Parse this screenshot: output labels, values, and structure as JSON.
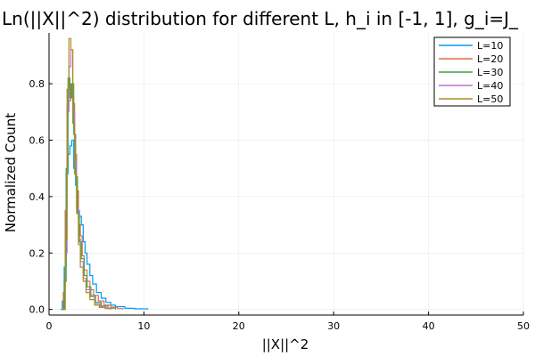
{
  "chart_data": {
    "type": "line",
    "title": "Ln(||X||^2) distribution for different L, h_i in [-1, 1], g_i=J_",
    "xlabel": "||X||^2",
    "ylabel": "Normalized Count",
    "xlim": [
      0,
      50
    ],
    "ylim": [
      -0.02,
      0.98
    ],
    "x_ticks": [
      0,
      10,
      20,
      30,
      40,
      50
    ],
    "y_ticks": [
      0.0,
      0.2,
      0.4,
      0.6,
      0.8
    ],
    "x_tick_labels": [
      "0",
      "10",
      "20",
      "30",
      "40",
      "50"
    ],
    "y_tick_labels": [
      "0.0",
      "0.2",
      "0.4",
      "0.6",
      "0.8"
    ],
    "grid": true,
    "legend_position": "top-right",
    "series": [
      {
        "name": "L=10",
        "color": "#009af9",
        "x": [
          1.2,
          1.4,
          1.6,
          1.8,
          2.0,
          2.2,
          2.4,
          2.6,
          2.8,
          3.0,
          3.2,
          3.4,
          3.6,
          3.8,
          4.0,
          4.3,
          4.6,
          5.0,
          5.5,
          6.0,
          6.5,
          7.0,
          8.0,
          9.0,
          10.4
        ],
        "y": [
          0.0,
          0.03,
          0.15,
          0.48,
          0.55,
          0.58,
          0.6,
          0.5,
          0.44,
          0.35,
          0.33,
          0.3,
          0.24,
          0.2,
          0.16,
          0.12,
          0.09,
          0.06,
          0.04,
          0.025,
          0.015,
          0.01,
          0.004,
          0.002,
          0.0
        ]
      },
      {
        "name": "L=20",
        "color": "#e26f46",
        "x": [
          1.3,
          1.5,
          1.7,
          1.9,
          2.1,
          2.3,
          2.5,
          2.7,
          2.9,
          3.1,
          3.3,
          3.5,
          3.7,
          4.0,
          4.3,
          4.7,
          5.2,
          5.8,
          6.5,
          7.2,
          7.8
        ],
        "y": [
          0.0,
          0.06,
          0.35,
          0.72,
          0.74,
          0.8,
          0.73,
          0.55,
          0.42,
          0.3,
          0.26,
          0.19,
          0.14,
          0.1,
          0.07,
          0.05,
          0.03,
          0.015,
          0.008,
          0.003,
          0.0
        ]
      },
      {
        "name": "L=30",
        "color": "#3da44d",
        "x": [
          1.4,
          1.6,
          1.8,
          2.0,
          2.2,
          2.4,
          2.6,
          2.8,
          3.0,
          3.2,
          3.4,
          3.7,
          4.0,
          4.4,
          4.9,
          5.5,
          6.2,
          7.0
        ],
        "y": [
          0.0,
          0.1,
          0.5,
          0.82,
          0.75,
          0.8,
          0.62,
          0.47,
          0.34,
          0.24,
          0.18,
          0.12,
          0.08,
          0.05,
          0.025,
          0.012,
          0.005,
          0.0
        ]
      },
      {
        "name": "L=40",
        "color": "#c271d2",
        "x": [
          1.5,
          1.7,
          1.9,
          2.1,
          2.3,
          2.5,
          2.7,
          2.9,
          3.1,
          3.3,
          3.6,
          3.9,
          4.3,
          4.8,
          5.4,
          6.0,
          6.6
        ],
        "y": [
          0.0,
          0.2,
          0.7,
          0.86,
          0.92,
          0.7,
          0.52,
          0.36,
          0.25,
          0.17,
          0.11,
          0.07,
          0.045,
          0.02,
          0.01,
          0.004,
          0.0
        ]
      },
      {
        "name": "L=50",
        "color": "#ac8d18",
        "x": [
          1.5,
          1.7,
          1.9,
          2.1,
          2.3,
          2.5,
          2.7,
          2.9,
          3.1,
          3.3,
          3.6,
          3.9,
          4.3,
          4.8,
          5.3,
          5.9,
          6.4
        ],
        "y": [
          0.0,
          0.25,
          0.78,
          0.96,
          0.92,
          0.66,
          0.48,
          0.34,
          0.23,
          0.15,
          0.1,
          0.06,
          0.035,
          0.015,
          0.007,
          0.003,
          0.0
        ]
      }
    ]
  }
}
